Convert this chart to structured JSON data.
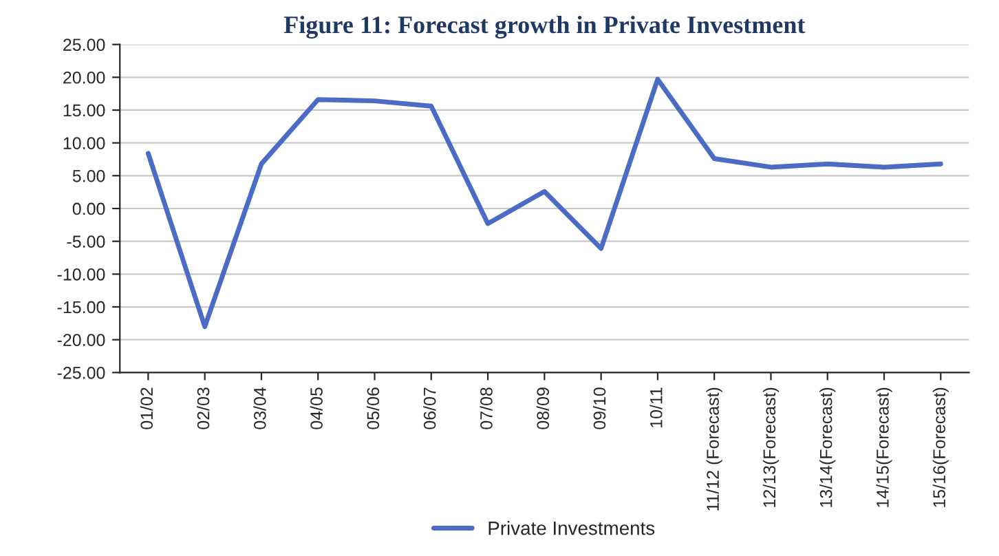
{
  "chart_data": {
    "type": "line",
    "title": "Figure 11: Forecast growth in Private Investment",
    "categories": [
      "01/02",
      "02/03",
      "03/04",
      "04/05",
      "05/06",
      "06/07",
      "07/08",
      "08/09",
      "09/10",
      "10/11",
      "11/12 (Forecast)",
      "12/13(Forecast)",
      "13/14(Forecast)",
      "14/15(Forecast)",
      "15/16(Forecast)"
    ],
    "series": [
      {
        "name": "Private Investments",
        "color": "#4a6cc4",
        "values": [
          8.4,
          -18.0,
          6.8,
          16.6,
          16.4,
          15.6,
          -2.3,
          2.6,
          -6.1,
          19.7,
          7.6,
          6.3,
          6.8,
          6.3,
          6.8
        ]
      }
    ],
    "ylim": [
      -25,
      25
    ],
    "yticks": [
      {
        "value": -25,
        "label": "-25.00"
      },
      {
        "value": -20,
        "label": "-20.00"
      },
      {
        "value": -15,
        "label": "-15.00"
      },
      {
        "value": -10,
        "label": "-10.00"
      },
      {
        "value": -5,
        "label": "-5.00"
      },
      {
        "value": 0,
        "label": "0.00"
      },
      {
        "value": 5,
        "label": "5.00"
      },
      {
        "value": 10,
        "label": "10.00"
      },
      {
        "value": 15,
        "label": "15.00"
      },
      {
        "value": 20,
        "label": "20.00"
      },
      {
        "value": 25,
        "label": "25.00"
      }
    ],
    "grid": "y",
    "legend": "bottom",
    "marker": "none",
    "line_style": "solid"
  }
}
